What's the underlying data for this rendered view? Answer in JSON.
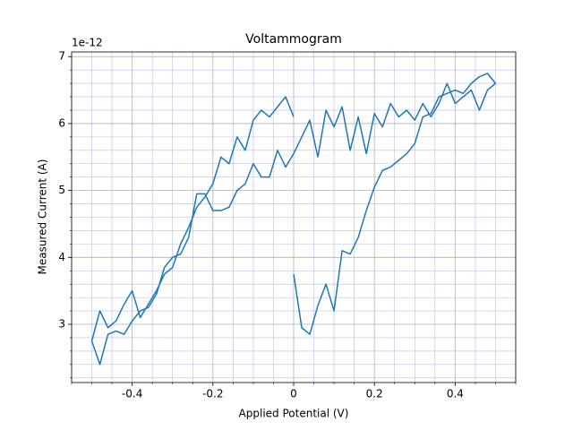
{
  "chart_data": {
    "type": "line",
    "title": "Voltammogram",
    "x_label": "Applied Potential (V)",
    "y_label": "Measured Current (A)",
    "y_offset_label": "1e-12",
    "x": [
      0,
      0.02,
      0.04,
      0.06,
      0.08,
      0.1,
      0.12,
      0.14,
      0.16,
      0.18,
      0.2,
      0.22,
      0.24,
      0.26,
      0.28,
      0.3,
      0.32,
      0.34,
      0.36,
      0.38,
      0.4,
      0.42,
      0.44,
      0.46,
      0.48,
      0.5,
      0.48,
      0.46,
      0.44,
      0.42,
      0.4,
      0.38,
      0.36,
      0.34,
      0.32,
      0.3,
      0.28,
      0.26,
      0.24,
      0.22,
      0.2,
      0.18,
      0.16,
      0.14,
      0.12,
      0.1,
      0.08,
      0.06,
      0.04,
      0.02,
      0,
      -0.02,
      -0.04,
      -0.06,
      -0.08,
      -0.1,
      -0.12,
      -0.14,
      -0.16,
      -0.18,
      -0.2,
      -0.22,
      -0.24,
      -0.26,
      -0.28,
      -0.3,
      -0.32,
      -0.34,
      -0.36,
      -0.38,
      -0.4,
      -0.42,
      -0.44,
      -0.46,
      -0.48,
      -0.5,
      -0.48,
      -0.46,
      -0.44,
      -0.42,
      -0.4,
      -0.38,
      -0.36,
      -0.34,
      -0.32,
      -0.3,
      -0.28,
      -0.26,
      -0.24,
      -0.22,
      -0.2,
      -0.18,
      -0.16,
      -0.14,
      -0.12,
      -0.1,
      -0.08,
      -0.06,
      -0.04,
      -0.02,
      0
    ],
    "series": [
      {
        "color": "#1f77b4",
        "values": [
          3.75,
          2.95,
          2.85,
          3.28,
          3.6,
          3.2,
          4.1,
          4.05,
          4.3,
          4.7,
          5.05,
          5.3,
          5.35,
          5.45,
          5.55,
          5.7,
          6.1,
          6.15,
          6.4,
          6.45,
          6.5,
          6.45,
          6.6,
          6.7,
          6.75,
          6.6,
          6.5,
          6.2,
          6.5,
          6.4,
          6.3,
          6.6,
          6.3,
          6.1,
          6.3,
          6.05,
          6.2,
          6.1,
          6.3,
          5.95,
          6.15,
          5.55,
          6.1,
          5.6,
          6.25,
          5.95,
          6.2,
          5.5,
          6.05,
          5.8,
          5.55,
          5.35,
          5.6,
          5.2,
          5.2,
          5.4,
          5.1,
          5.0,
          4.75,
          4.7,
          4.7,
          4.95,
          4.95,
          4.3,
          4.05,
          4.0,
          3.85,
          3.45,
          3.25,
          3.2,
          3.05,
          2.85,
          2.9,
          2.85,
          2.4,
          2.75,
          3.2,
          2.95,
          3.05,
          3.3,
          3.5,
          3.1,
          3.3,
          3.5,
          3.75,
          3.85,
          4.2,
          4.45,
          4.75,
          4.9,
          5.1,
          5.5,
          5.4,
          5.8,
          5.6,
          6.05,
          6.2,
          6.1,
          6.25,
          6.4,
          6.1
        ]
      }
    ],
    "xlim": [
      -0.55,
      0.55
    ],
    "ylim": [
      2.13,
      7.07
    ],
    "xticks": [
      -0.4,
      -0.2,
      0,
      0.2,
      0.4
    ],
    "yticks": [
      3,
      4,
      5,
      6,
      7
    ],
    "x_minor_ticks": [
      -0.55,
      -0.5,
      -0.45,
      -0.35,
      -0.3,
      -0.25,
      -0.15,
      -0.1,
      -0.05,
      0.05,
      0.1,
      0.15,
      0.25,
      0.3,
      0.35,
      0.45,
      0.5,
      0.55
    ],
    "y_minor_ticks": [
      2.2,
      2.4,
      2.6,
      2.8,
      3.2,
      3.4,
      3.6,
      3.8,
      4.2,
      4.4,
      4.6,
      4.8,
      5.2,
      5.4,
      5.6,
      5.8,
      6.2,
      6.4,
      6.6,
      6.8,
      7.0
    ],
    "grid": true,
    "grid_color": "#b0b0b0",
    "minor_grid_color": "#b8b8f0"
  }
}
